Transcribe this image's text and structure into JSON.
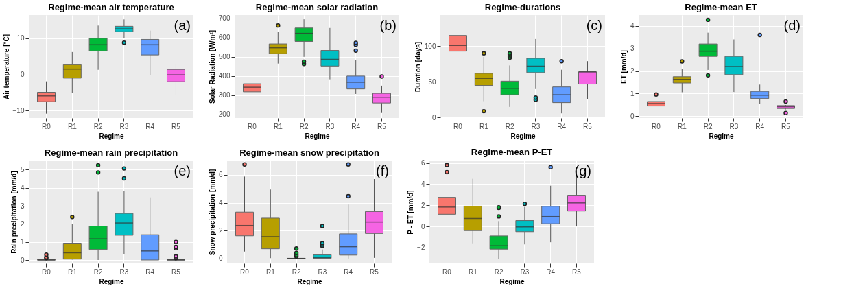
{
  "chart_data": [
    {
      "type": "box",
      "title": "Regime-mean air temperature",
      "xlabel": "Regime",
      "ylabel": "Air temperature [°C]",
      "categories": [
        "R0",
        "R1",
        "R2",
        "R3",
        "R4",
        "R5"
      ],
      "colors": [
        "#f8766d",
        "#b79f00",
        "#00ba38",
        "#00bfc4",
        "#619cff",
        "#f564e3"
      ],
      "boxes": [
        {
          "low": -10.8,
          "q1": -7.5,
          "median": -5.9,
          "q3": -4.9,
          "high": -1.9
        },
        {
          "low": -5.0,
          "q1": -1.0,
          "median": 1.5,
          "q3": 2.7,
          "high": 6.2
        },
        {
          "low": 1.3,
          "q1": 6.5,
          "median": 8.2,
          "q3": 10.0,
          "high": 13.5
        },
        {
          "low": 10.0,
          "q1": 11.8,
          "median": 12.6,
          "q3": 13.3,
          "high": 15.2,
          "outliers": [
            8.8
          ]
        },
        {
          "low": -0.2,
          "q1": 5.4,
          "median": 8.2,
          "q3": 9.7,
          "high": 12.1
        },
        {
          "low": -5.6,
          "q1": -2.0,
          "median": -0.1,
          "q3": 1.4,
          "high": 3.0
        }
      ],
      "ylim": [
        -12,
        16.4
      ],
      "yticks": [
        -10,
        0,
        10
      ],
      "grid": true,
      "annotations": [
        "(a)"
      ]
    },
    {
      "type": "box",
      "title": "Regime-mean solar radiation",
      "xlabel": "Regime",
      "ylabel": "Solar Radiation [W/m²]",
      "categories": [
        "R0",
        "R1",
        "R2",
        "R3",
        "R4",
        "R5"
      ],
      "colors": [
        "#f8766d",
        "#b79f00",
        "#00ba38",
        "#00bfc4",
        "#619cff",
        "#f564e3"
      ],
      "boxes": [
        {
          "low": 270,
          "q1": 318,
          "median": 342,
          "q3": 360,
          "high": 412
        },
        {
          "low": 465,
          "q1": 516,
          "median": 547,
          "q3": 567,
          "high": 630,
          "outliers": [
            663
          ]
        },
        {
          "low": 500,
          "q1": 580,
          "median": 622,
          "q3": 650,
          "high": 695,
          "outliers": [
            463,
            475
          ]
        },
        {
          "low": 383,
          "q1": 452,
          "median": 487,
          "q3": 533,
          "high": 650
        },
        {
          "low": 307,
          "q1": 333,
          "median": 368,
          "q3": 400,
          "high": 482,
          "outliers": [
            532,
            563,
            573
          ]
        },
        {
          "low": 208,
          "q1": 260,
          "median": 290,
          "q3": 310,
          "high": 350,
          "outliers": [
            398
          ]
        }
      ],
      "ylim": [
        182,
        717
      ],
      "yticks": [
        200,
        300,
        400,
        500,
        600,
        700
      ],
      "grid": true,
      "annotations": [
        "(b)"
      ]
    },
    {
      "type": "box",
      "title": "Regime-durations",
      "xlabel": "Regime",
      "ylabel": "Duration [days]",
      "categories": [
        "R0",
        "R1",
        "R2",
        "R3",
        "R4",
        "R5"
      ],
      "colors": [
        "#f8766d",
        "#b79f00",
        "#00ba38",
        "#00bfc4",
        "#619cff",
        "#f564e3"
      ],
      "boxes": [
        {
          "low": 70,
          "q1": 93,
          "median": 101,
          "q3": 115,
          "high": 137
        },
        {
          "low": 23,
          "q1": 45,
          "median": 55,
          "q3": 62,
          "high": 85,
          "outliers": [
            9,
            90
          ]
        },
        {
          "low": 15,
          "q1": 32,
          "median": 41,
          "q3": 51,
          "high": 73,
          "outliers": [
            84,
            86,
            88,
            90
          ]
        },
        {
          "low": 40,
          "q1": 63,
          "median": 72,
          "q3": 83,
          "high": 110,
          "outliers": [
            25,
            28
          ]
        },
        {
          "low": 6,
          "q1": 21,
          "median": 32,
          "q3": 43,
          "high": 67,
          "outliers": [
            79
          ]
        },
        {
          "low": 26,
          "q1": 47,
          "median": 64,
          "q3": 64,
          "high": 79
        }
      ],
      "ylim": [
        -0.5,
        143.5
      ],
      "yticks": [
        0,
        50,
        100
      ],
      "grid": true,
      "annotations": [
        "(c)"
      ]
    },
    {
      "type": "box",
      "title": "Regime-mean ET",
      "xlabel": "Regime",
      "ylabel": "ET [mm/d]",
      "categories": [
        "R0",
        "R1",
        "R2",
        "R3",
        "R4",
        "R5"
      ],
      "colors": [
        "#f8766d",
        "#b79f00",
        "#00ba38",
        "#00bfc4",
        "#619cff",
        "#f564e3"
      ],
      "boxes": [
        {
          "low": 0.29,
          "q1": 0.45,
          "median": 0.56,
          "q3": 0.65,
          "high": 0.88,
          "outliers": [
            0.96
          ]
        },
        {
          "low": 1.06,
          "q1": 1.47,
          "median": 1.63,
          "q3": 1.75,
          "high": 2.08,
          "outliers": [
            2.43
          ]
        },
        {
          "low": 2.05,
          "q1": 2.65,
          "median": 2.88,
          "q3": 3.2,
          "high": 3.7,
          "outliers": [
            1.81,
            4.27
          ]
        },
        {
          "low": 1.07,
          "q1": 1.84,
          "median": 2.2,
          "q3": 2.65,
          "high": 3.4
        },
        {
          "low": 0.55,
          "q1": 0.78,
          "median": 0.93,
          "q3": 1.1,
          "high": 1.4,
          "outliers": [
            3.6
          ]
        },
        {
          "low": 0.3,
          "q1": 0.34,
          "median": 0.42,
          "q3": 0.47,
          "high": 0.5,
          "outliers": [
            0.14,
            0.65
          ]
        }
      ],
      "ylim": [
        -0.08,
        4.48
      ],
      "yticks": [
        0,
        1,
        2,
        3,
        4
      ],
      "grid": true,
      "annotations": [
        "(d)"
      ]
    },
    {
      "type": "box",
      "title": "Regime-mean rain precipitation",
      "xlabel": "Regime",
      "ylabel": "Rain precipitation [mm/d]",
      "categories": [
        "R0",
        "R1",
        "R2",
        "R3",
        "R4",
        "R5"
      ],
      "colors": [
        "#f8766d",
        "#b79f00",
        "#00ba38",
        "#00bfc4",
        "#619cff",
        "#f564e3"
      ],
      "boxes": [
        {
          "low": 0,
          "q1": 0,
          "median": 0,
          "q3": 0.02,
          "high": 0.05,
          "outliers": [
            0.1,
            0.15,
            0.3
          ]
        },
        {
          "low": 0.02,
          "q1": 0.05,
          "median": 0.4,
          "q3": 0.93,
          "high": 2.0,
          "outliers": [
            2.38
          ]
        },
        {
          "low": 0,
          "q1": 0.58,
          "median": 1.17,
          "q3": 1.88,
          "high": 3.78,
          "outliers": [
            4.85,
            5.25
          ]
        },
        {
          "low": 0.33,
          "q1": 1.37,
          "median": 2.05,
          "q3": 2.58,
          "high": 3.8,
          "outliers": [
            4.52,
            5.07
          ]
        },
        {
          "low": 0,
          "q1": 0,
          "median": 0.5,
          "q3": 1.4,
          "high": 3.47
        },
        {
          "low": 0,
          "q1": 0,
          "median": 0,
          "q3": 0.02,
          "high": 0.05,
          "outliers": [
            0.1,
            0.2,
            0.65,
            0.72,
            1.0
          ]
        }
      ],
      "ylim": [
        -0.19,
        5.51
      ],
      "yticks": [
        0,
        1,
        2,
        3,
        4,
        5
      ],
      "grid": true,
      "annotations": [
        "(e)"
      ]
    },
    {
      "type": "box",
      "title": "Regime-mean snow precipitation",
      "xlabel": "Regime",
      "ylabel": "Snow precipitation [mm/d]",
      "categories": [
        "R0",
        "R1",
        "R2",
        "R3",
        "R4",
        "R5"
      ],
      "colors": [
        "#f8766d",
        "#b79f00",
        "#00ba38",
        "#00bfc4",
        "#619cff",
        "#f564e3"
      ],
      "boxes": [
        {
          "low": 0.5,
          "q1": 1.63,
          "median": 2.37,
          "q3": 3.33,
          "high": 5.88,
          "outliers": [
            6.75
          ]
        },
        {
          "low": 0.03,
          "q1": 0.7,
          "median": 1.57,
          "q3": 2.9,
          "high": 4.95
        },
        {
          "low": 0,
          "q1": 0,
          "median": 0.01,
          "q3": 0.02,
          "high": 0.05,
          "outliers": [
            0.15,
            0.25,
            0.4,
            0.72
          ]
        },
        {
          "low": 0,
          "q1": 0.02,
          "median": 0.08,
          "q3": 0.27,
          "high": 0.65,
          "outliers": [
            0.9,
            1.0,
            1.1,
            2.33
          ]
        },
        {
          "low": 0,
          "q1": 0.25,
          "median": 0.85,
          "q3": 1.77,
          "high": 3.87,
          "outliers": [
            4.47,
            6.75
          ]
        },
        {
          "low": 0.05,
          "q1": 1.8,
          "median": 2.62,
          "q3": 3.37,
          "high": 5.7
        }
      ],
      "ylim": [
        -0.35,
        7.03
      ],
      "yticks": [
        0,
        2,
        4,
        6
      ],
      "grid": true,
      "annotations": [
        "(f)"
      ]
    },
    {
      "type": "box",
      "title": "Regime-mean P-ET",
      "xlabel": "Regime",
      "ylabel": "P - ET [mm/d]",
      "categories": [
        "R0",
        "R1",
        "R2",
        "R3",
        "R4",
        "R5"
      ],
      "colors": [
        "#f8766d",
        "#b79f00",
        "#00ba38",
        "#00bfc4",
        "#619cff",
        "#f564e3"
      ],
      "boxes": [
        {
          "low": 0.1,
          "q1": 1.15,
          "median": 1.83,
          "q3": 2.75,
          "high": 4.8,
          "outliers": [
            5.13,
            5.8
          ]
        },
        {
          "low": -1.6,
          "q1": -0.4,
          "median": 0.75,
          "q3": 1.92,
          "high": 4.5
        },
        {
          "low": -3.1,
          "q1": -2.15,
          "median": -1.83,
          "q3": -0.9,
          "high": 0.5,
          "outliers": [
            0.95,
            1.75,
            1.8
          ]
        },
        {
          "low": -1.7,
          "q1": -0.5,
          "median": -0.05,
          "q3": 0.55,
          "high": 1.85,
          "outliers": [
            2.13
          ]
        },
        {
          "low": -1.5,
          "q1": 0.25,
          "median": 0.93,
          "q3": 1.9,
          "high": 3.85,
          "outliers": [
            5.6
          ]
        },
        {
          "low": 0,
          "q1": 1.45,
          "median": 2.22,
          "q3": 2.95,
          "high": 5.3
        }
      ],
      "ylim": [
        -3.5,
        6.23
      ],
      "yticks": [
        -2,
        0,
        2,
        4,
        6
      ],
      "grid": true,
      "annotations": [
        "(g)"
      ]
    }
  ]
}
